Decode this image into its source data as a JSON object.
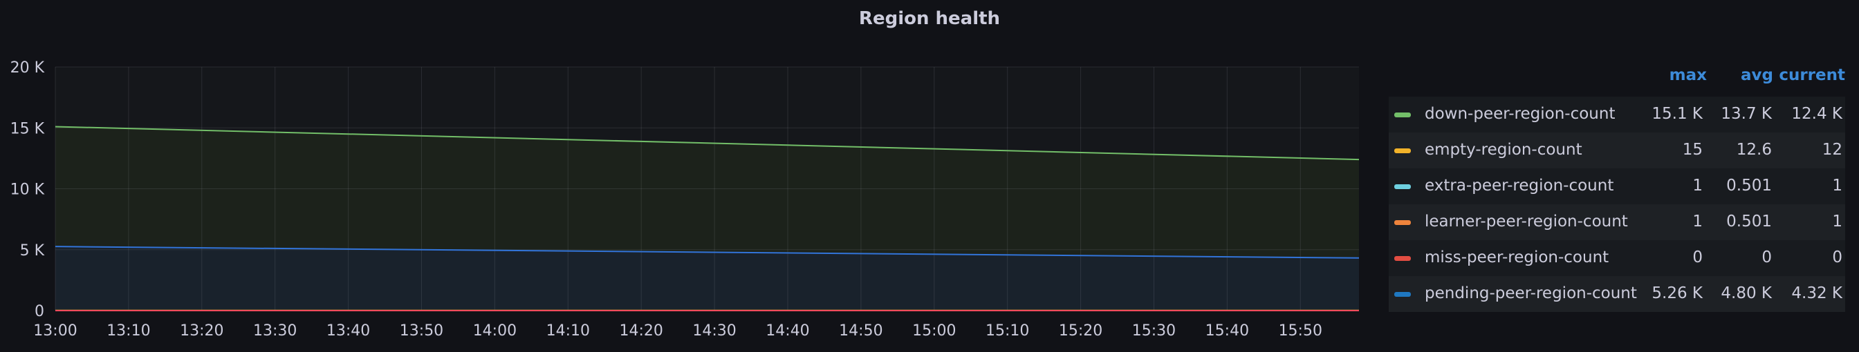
{
  "panel": {
    "title": "Region health"
  },
  "chart_data": {
    "type": "area",
    "title": "Region health",
    "xlabel": "",
    "ylabel": "",
    "ylim": [
      0,
      20000
    ],
    "yticks": [
      {
        "value": 0,
        "label": "0"
      },
      {
        "value": 5000,
        "label": "5 K"
      },
      {
        "value": 10000,
        "label": "10 K"
      },
      {
        "value": 15000,
        "label": "15 K"
      },
      {
        "value": 20000,
        "label": "20 K"
      }
    ],
    "x_range_minutes": [
      0,
      178
    ],
    "xticks": [
      {
        "minute": 0,
        "label": "13:00"
      },
      {
        "minute": 10,
        "label": "13:10"
      },
      {
        "minute": 20,
        "label": "13:20"
      },
      {
        "minute": 30,
        "label": "13:30"
      },
      {
        "minute": 40,
        "label": "13:40"
      },
      {
        "minute": 50,
        "label": "13:50"
      },
      {
        "minute": 60,
        "label": "14:00"
      },
      {
        "minute": 70,
        "label": "14:10"
      },
      {
        "minute": 80,
        "label": "14:20"
      },
      {
        "minute": 90,
        "label": "14:30"
      },
      {
        "minute": 100,
        "label": "14:40"
      },
      {
        "minute": 110,
        "label": "14:50"
      },
      {
        "minute": 120,
        "label": "15:00"
      },
      {
        "minute": 130,
        "label": "15:10"
      },
      {
        "minute": 140,
        "label": "15:20"
      },
      {
        "minute": 150,
        "label": "15:30"
      },
      {
        "minute": 160,
        "label": "15:40"
      },
      {
        "minute": 170,
        "label": "15:50"
      }
    ],
    "grid": true,
    "legend_placement": "right",
    "series": [
      {
        "name": "down-peer-region-count",
        "color": "#73bf69",
        "fill": "#1c221b",
        "points": [
          [
            0,
            15100
          ],
          [
            178,
            12400
          ]
        ]
      },
      {
        "name": "empty-region-count",
        "color": "#fade2a",
        "fill": null,
        "points": [
          [
            0,
            15
          ],
          [
            178,
            12
          ]
        ]
      },
      {
        "name": "extra-peer-region-count",
        "color": "#5794f2",
        "fill": null,
        "points": [
          [
            0,
            1
          ],
          [
            178,
            1
          ]
        ]
      },
      {
        "name": "learner-peer-region-count",
        "color": "#ff780a",
        "fill": null,
        "points": [
          [
            0,
            1
          ],
          [
            178,
            1
          ]
        ]
      },
      {
        "name": "miss-peer-region-count",
        "color": "#f2495c",
        "fill": null,
        "points": [
          [
            0,
            0
          ],
          [
            178,
            0
          ]
        ]
      },
      {
        "name": "pending-peer-region-count",
        "color": "#3274d9",
        "fill": "#19222c",
        "points": [
          [
            0,
            5260
          ],
          [
            178,
            4320
          ]
        ]
      }
    ]
  },
  "legend": {
    "headers": {
      "max": "max",
      "avg": "avg",
      "current": "current"
    },
    "items": [
      {
        "name": "down-peer-region-count",
        "color": "#73bf69",
        "max": "15.1 K",
        "avg": "13.7 K",
        "current": "12.4 K"
      },
      {
        "name": "empty-region-count",
        "color": "#f2b32a",
        "max": "15",
        "avg": "12.6",
        "current": "12"
      },
      {
        "name": "extra-peer-region-count",
        "color": "#6ed0e0",
        "max": "1",
        "avg": "0.501",
        "current": "1"
      },
      {
        "name": "learner-peer-region-count",
        "color": "#ef843c",
        "max": "1",
        "avg": "0.501",
        "current": "1"
      },
      {
        "name": "miss-peer-region-count",
        "color": "#e24d42",
        "max": "0",
        "avg": "0",
        "current": "0"
      },
      {
        "name": "pending-peer-region-count",
        "color": "#1f78c1",
        "max": "5.26 K",
        "avg": "4.80 K",
        "current": "4.32 K"
      }
    ]
  }
}
